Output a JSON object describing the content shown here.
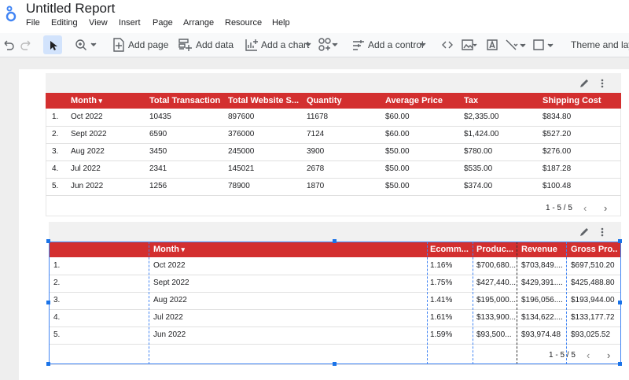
{
  "header": {
    "title": "Untitled Report",
    "menu": [
      "File",
      "Editing",
      "View",
      "Insert",
      "Page",
      "Arrange",
      "Resource",
      "Help"
    ]
  },
  "toolbar": {
    "add_page": "Add page",
    "add_data": "Add data",
    "add_chart": "Add a chart",
    "add_control": "Add a control",
    "theme": "Theme and layout"
  },
  "table1": {
    "columns": [
      "Month",
      "Total Transaction",
      "Total Website S...",
      "Quantity",
      "Average Price",
      "Tax",
      "Shipping Cost"
    ],
    "rows": [
      [
        "1.",
        "Oct 2022",
        "10435",
        "897600",
        "11678",
        "$60.00",
        "$2,335.00",
        "$834.80"
      ],
      [
        "2.",
        "Sept 2022",
        "6590",
        "376000",
        "7124",
        "$60.00",
        "$1,424.00",
        "$527.20"
      ],
      [
        "3.",
        "Aug 2022",
        "3450",
        "245000",
        "3900",
        "$50.00",
        "$780.00",
        "$276.00"
      ],
      [
        "4.",
        "Jul 2022",
        "2341",
        "145021",
        "2678",
        "$50.00",
        "$535.00",
        "$187.28"
      ],
      [
        "5.",
        "Jun 2022",
        "1256",
        "78900",
        "1870",
        "$50.00",
        "$374.00",
        "$100.48"
      ]
    ],
    "pagination": "1 - 5 / 5"
  },
  "table2": {
    "columns": [
      "Month",
      "Ecomm...",
      "Produc...",
      "Revenue",
      "Gross Pro..."
    ],
    "rows": [
      [
        "1.",
        "Oct 2022",
        "1.16%",
        "$700,680...",
        "$703,849....",
        "$697,510.20"
      ],
      [
        "2.",
        "Sept 2022",
        "1.75%",
        "$427,440...",
        "$429,391....",
        "$425,488.80"
      ],
      [
        "3.",
        "Aug 2022",
        "1.41%",
        "$195,000...",
        "$196,056....",
        "$193,944.00"
      ],
      [
        "4.",
        "Jul 2022",
        "1.61%",
        "$133,900...",
        "$134,622....",
        "$133,177.72"
      ],
      [
        "5.",
        "Jun 2022",
        "1.59%",
        "$93,500...",
        "$93,974.48",
        "$93,025.52"
      ]
    ],
    "pagination": "1 - 5 / 5"
  }
}
